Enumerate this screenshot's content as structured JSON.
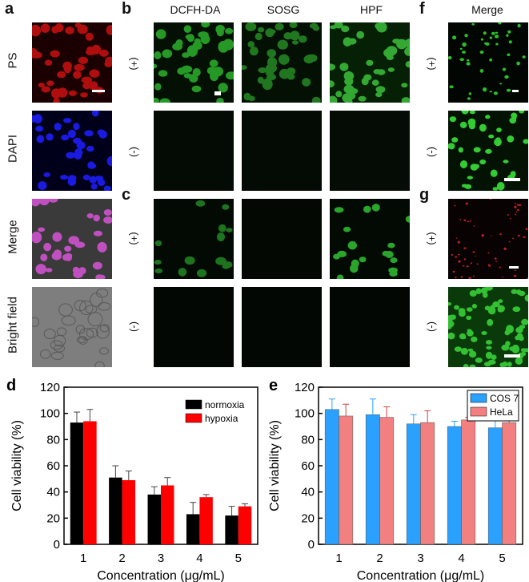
{
  "panels": {
    "a": {
      "label": "a",
      "rows": [
        "PS",
        "DAPI",
        "Merge",
        "Bright field"
      ]
    },
    "b": {
      "label": "b",
      "cols": [
        "DCFH-DA",
        "SOSG",
        "HPF"
      ],
      "signs": [
        "(+)",
        "(-)"
      ]
    },
    "c": {
      "label": "c",
      "signs": [
        "(+)",
        "(-)"
      ]
    },
    "f": {
      "label": "f",
      "col": "Merge",
      "signs": [
        "(+)",
        "(-)"
      ]
    },
    "g": {
      "label": "g",
      "signs": [
        "(+)",
        "(-)"
      ]
    }
  },
  "colors": {
    "ps": "#c01010",
    "dapi": "#1a1ae0",
    "merge": "#b040b0",
    "bright": "#8a8a8a",
    "green": "#22c022",
    "red_dots": "#d02020",
    "normoxia": "#000000",
    "hypoxia": "#ff0000",
    "cos7": "#2aa0ff",
    "hela": "#f28080"
  },
  "chart_data": [
    {
      "type": "bar",
      "panel_label": "d",
      "categories": [
        "1",
        "2",
        "3",
        "4",
        "5"
      ],
      "series": [
        {
          "name": "normoxia",
          "values": [
            93,
            51,
            38,
            23,
            22
          ],
          "errors": [
            8,
            9,
            6,
            9,
            7
          ]
        },
        {
          "name": "hypoxia",
          "values": [
            94,
            49,
            45,
            36,
            29
          ],
          "errors": [
            9,
            7,
            6,
            2,
            2
          ]
        }
      ],
      "xlabel": "Concentration (μg/mL)",
      "ylabel": "Cell viability (%)",
      "ylim": [
        0,
        120
      ],
      "yticks": [
        "0",
        "20",
        "40",
        "60",
        "80",
        "100",
        "120"
      ],
      "legend": "top-right"
    },
    {
      "type": "bar",
      "panel_label": "e",
      "categories": [
        "1",
        "2",
        "3",
        "4",
        "5"
      ],
      "series": [
        {
          "name": "COS 7",
          "values": [
            103,
            99,
            92,
            90,
            89
          ],
          "errors": [
            8,
            12,
            7,
            4,
            8
          ]
        },
        {
          "name": "HeLa",
          "values": [
            98,
            97,
            93,
            95,
            93
          ],
          "errors": [
            9,
            8,
            9,
            2,
            5
          ]
        }
      ],
      "xlabel": "Concentration (μg/mL)",
      "ylabel": "Cell viability (%)",
      "ylim": [
        0,
        120
      ],
      "yticks": [
        "0",
        "20",
        "40",
        "60",
        "80",
        "100",
        "120"
      ],
      "legend": "top-right"
    }
  ]
}
